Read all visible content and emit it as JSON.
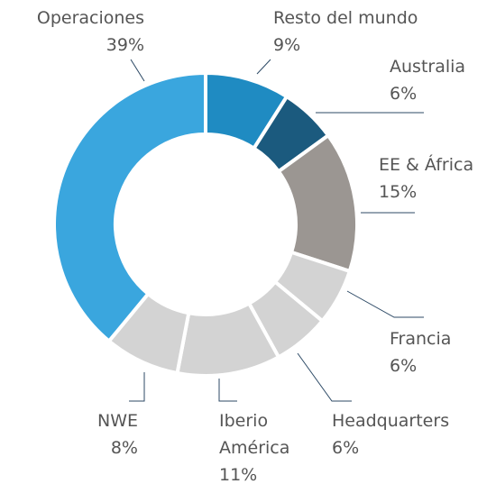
{
  "chart_data": {
    "type": "donut",
    "categories": [
      "Resto del mundo",
      "Australia",
      "EE & África",
      "Francia",
      "Headquarters",
      "Iberio América",
      "NWE",
      "Operaciones"
    ],
    "values": [
      9,
      6,
      15,
      6,
      6,
      11,
      8,
      39
    ],
    "value_labels": [
      "9%",
      "6%",
      "15%",
      "6%",
      "6%",
      "11%",
      "8%",
      "39%"
    ],
    "colors": [
      "#1f8bc2",
      "#1b5a7e",
      "#9b9692",
      "#d3d3d3",
      "#d3d3d3",
      "#d3d3d3",
      "#d3d3d3",
      "#3aa6de"
    ]
  }
}
